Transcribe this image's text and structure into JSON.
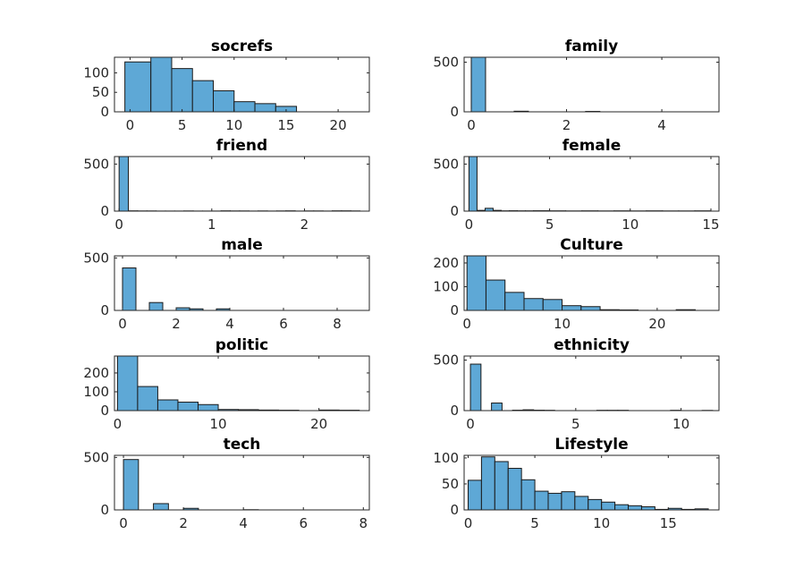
{
  "chart_data": [
    {
      "type": "bar",
      "title": "socrefs",
      "xlim": [
        -1.5,
        23
      ],
      "ylim": [
        0,
        140
      ],
      "xticks": [
        0,
        5,
        10,
        15,
        20
      ],
      "yticks": [
        0,
        50,
        100
      ],
      "bins": [
        [
          -0.5,
          2
        ],
        [
          2,
          4
        ],
        [
          4,
          6
        ],
        [
          6,
          8
        ],
        [
          8,
          10
        ],
        [
          10,
          12
        ],
        [
          12,
          14
        ],
        [
          14,
          16
        ]
      ],
      "values": [
        128,
        140,
        111,
        80,
        54,
        26,
        21,
        14
      ]
    },
    {
      "type": "bar",
      "title": "family",
      "xlim": [
        -0.15,
        5.2
      ],
      "ylim": [
        0,
        550
      ],
      "xticks": [
        0,
        2,
        4
      ],
      "yticks": [
        0,
        500
      ],
      "bins": [
        [
          0,
          0.3
        ],
        [
          0.9,
          1.2
        ],
        [
          2.4,
          2.7
        ]
      ],
      "values": [
        550,
        6,
        4
      ]
    },
    {
      "type": "bar",
      "title": "friend",
      "xlim": [
        -0.05,
        2.7
      ],
      "ylim": [
        0,
        580
      ],
      "xticks": [
        0,
        1,
        2
      ],
      "yticks": [
        0,
        500
      ],
      "bins": [
        [
          0,
          0.1
        ],
        [
          0.1,
          0.2
        ],
        [
          0.2,
          0.3
        ],
        [
          0.3,
          0.4
        ],
        [
          0.4,
          0.5
        ],
        [
          0.5,
          0.6
        ],
        [
          0.6,
          0.7
        ],
        [
          0.7,
          0.8
        ],
        [
          0.8,
          0.9
        ],
        [
          0.9,
          1.0
        ],
        [
          1.0,
          1.1
        ],
        [
          1.1,
          1.2
        ],
        [
          1.2,
          1.3
        ],
        [
          1.3,
          1.4
        ],
        [
          1.4,
          1.5
        ],
        [
          1.5,
          1.6
        ],
        [
          1.6,
          1.7
        ],
        [
          1.7,
          1.8
        ],
        [
          1.8,
          1.9
        ],
        [
          1.9,
          2.0
        ],
        [
          2.0,
          2.1
        ],
        [
          2.1,
          2.2
        ],
        [
          2.2,
          2.3
        ],
        [
          2.3,
          2.4
        ],
        [
          2.4,
          2.5
        ],
        [
          2.5,
          2.6
        ]
      ],
      "values": [
        580,
        3,
        2,
        2,
        1,
        1,
        1,
        2,
        1,
        1,
        1,
        3,
        2,
        2,
        1,
        2,
        1,
        2,
        3,
        1,
        2,
        2,
        1,
        3,
        3,
        2
      ]
    },
    {
      "type": "bar",
      "title": "female",
      "xlim": [
        -0.3,
        15.5
      ],
      "ylim": [
        0,
        580
      ],
      "xticks": [
        0,
        5,
        10,
        15
      ],
      "yticks": [
        0,
        500
      ],
      "bins": [
        [
          0,
          0.5
        ],
        [
          0.5,
          1
        ],
        [
          1,
          1.5
        ],
        [
          1.5,
          2
        ],
        [
          2,
          2.5
        ],
        [
          2.5,
          3
        ],
        [
          3,
          3.5
        ],
        [
          3.5,
          4
        ],
        [
          4,
          5
        ],
        [
          5,
          6
        ],
        [
          6,
          7
        ],
        [
          7,
          8
        ],
        [
          8,
          9
        ],
        [
          9,
          10
        ],
        [
          10,
          11
        ],
        [
          11,
          12
        ],
        [
          12,
          13
        ],
        [
          13,
          14
        ],
        [
          14,
          15
        ]
      ],
      "values": [
        580,
        8,
        30,
        8,
        3,
        4,
        3,
        3,
        4,
        3,
        2,
        3,
        2,
        3,
        2,
        3,
        2,
        2,
        3
      ]
    },
    {
      "type": "bar",
      "title": "male",
      "xlim": [
        -0.3,
        9.2
      ],
      "ylim": [
        0,
        520
      ],
      "xticks": [
        0,
        2,
        4,
        6,
        8
      ],
      "yticks": [
        0,
        500
      ],
      "bins": [
        [
          0,
          0.5
        ],
        [
          1,
          1.5
        ],
        [
          2,
          2.5
        ],
        [
          2.5,
          3
        ],
        [
          3.5,
          4
        ]
      ],
      "values": [
        405,
        75,
        25,
        15,
        15
      ]
    },
    {
      "type": "bar",
      "title": "Culture",
      "xlim": [
        -0.3,
        26.5
      ],
      "ylim": [
        0,
        230
      ],
      "xticks": [
        0,
        10,
        20
      ],
      "yticks": [
        0,
        100,
        200
      ],
      "bins": [
        [
          0,
          2
        ],
        [
          2,
          4
        ],
        [
          4,
          6
        ],
        [
          6,
          8
        ],
        [
          8,
          10
        ],
        [
          10,
          12
        ],
        [
          12,
          14
        ],
        [
          14,
          16
        ],
        [
          16,
          18
        ],
        [
          22,
          24
        ]
      ],
      "values": [
        230,
        128,
        76,
        50,
        46,
        20,
        16,
        3,
        2,
        3
      ]
    },
    {
      "type": "bar",
      "title": "politic",
      "xlim": [
        -0.3,
        25
      ],
      "ylim": [
        0,
        290
      ],
      "xticks": [
        0,
        10,
        20
      ],
      "yticks": [
        0,
        100,
        200
      ],
      "bins": [
        [
          0,
          2
        ],
        [
          2,
          4
        ],
        [
          4,
          6
        ],
        [
          6,
          8
        ],
        [
          8,
          10
        ],
        [
          10,
          12
        ],
        [
          12,
          14
        ],
        [
          14,
          16
        ],
        [
          16,
          18
        ],
        [
          20,
          22
        ],
        [
          22,
          24
        ]
      ],
      "values": [
        290,
        128,
        57,
        45,
        32,
        6,
        5,
        3,
        2,
        3,
        2
      ]
    },
    {
      "type": "bar",
      "title": "ethnicity",
      "xlim": [
        -0.3,
        11.8
      ],
      "ylim": [
        0,
        540
      ],
      "xticks": [
        0,
        5,
        10
      ],
      "yticks": [
        0,
        500
      ],
      "bins": [
        [
          0,
          0.5
        ],
        [
          1,
          1.5
        ],
        [
          2,
          2.5
        ],
        [
          2.5,
          3
        ],
        [
          3,
          3.5
        ],
        [
          3.5,
          4
        ],
        [
          6,
          6.5
        ],
        [
          6.5,
          7
        ],
        [
          7,
          7.5
        ],
        [
          9.5,
          10
        ],
        [
          11,
          11.5
        ]
      ],
      "values": [
        460,
        75,
        4,
        8,
        4,
        3,
        3,
        3,
        3,
        3,
        2
      ]
    },
    {
      "type": "bar",
      "title": "tech",
      "xlim": [
        -0.3,
        8.2
      ],
      "ylim": [
        0,
        520
      ],
      "xticks": [
        0,
        2,
        4,
        6,
        8
      ],
      "yticks": [
        0,
        500
      ],
      "bins": [
        [
          0,
          0.5
        ],
        [
          1,
          1.5
        ],
        [
          2,
          2.5
        ],
        [
          4,
          4.5
        ]
      ],
      "values": [
        480,
        60,
        15,
        2
      ]
    },
    {
      "type": "bar",
      "title": "Lifestyle",
      "xlim": [
        -0.3,
        18.8
      ],
      "ylim": [
        0,
        105
      ],
      "xticks": [
        0,
        5,
        10,
        15
      ],
      "yticks": [
        0,
        50,
        100
      ],
      "bins": [
        [
          0,
          1
        ],
        [
          1,
          2
        ],
        [
          2,
          3
        ],
        [
          3,
          4
        ],
        [
          4,
          5
        ],
        [
          5,
          6
        ],
        [
          6,
          7
        ],
        [
          7,
          8
        ],
        [
          8,
          9
        ],
        [
          9,
          10
        ],
        [
          10,
          11
        ],
        [
          11,
          12
        ],
        [
          12,
          13
        ],
        [
          13,
          14
        ],
        [
          14,
          15
        ],
        [
          15,
          16
        ],
        [
          16,
          17
        ],
        [
          17,
          18
        ]
      ],
      "values": [
        57,
        102,
        93,
        80,
        58,
        36,
        32,
        35,
        26,
        20,
        15,
        10,
        8,
        6,
        1,
        3,
        1,
        2
      ]
    }
  ]
}
